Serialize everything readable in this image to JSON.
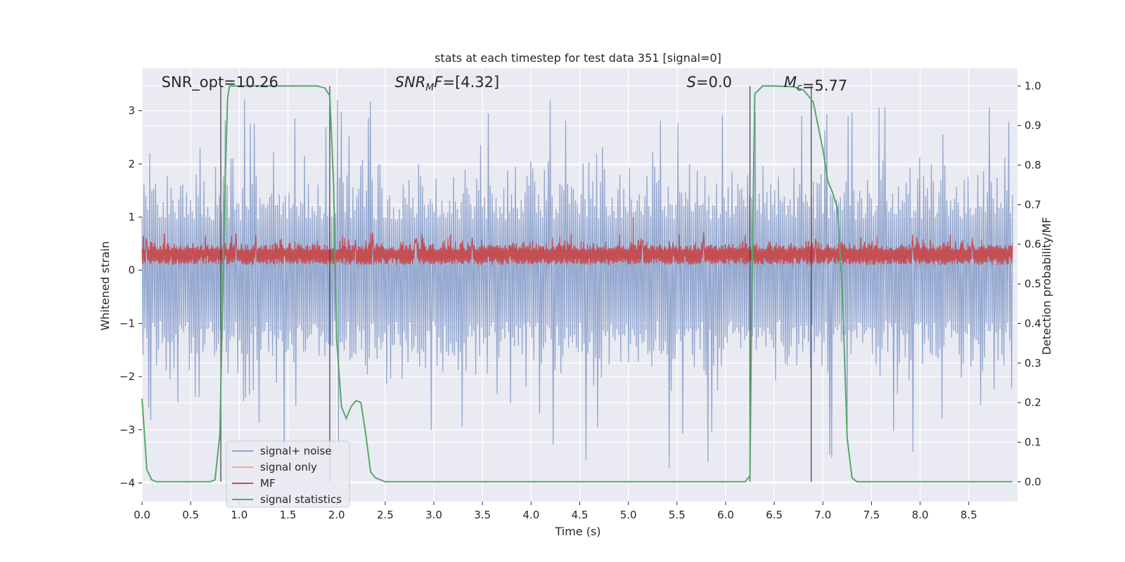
{
  "chart_data": {
    "type": "line",
    "title": "stats at each timestep for test data 351 [signal=0]",
    "xlabel": "Time (s)",
    "ylabel": "Whitened strain",
    "y2label": "Detection probability/MF",
    "xlim": [
      0,
      9.0
    ],
    "ylim": [
      -4.35,
      3.8
    ],
    "y2lim": [
      -0.05,
      1.045
    ],
    "xticks": [
      0.0,
      0.5,
      1.0,
      1.5,
      2.0,
      2.5,
      3.0,
      3.5,
      4.0,
      4.5,
      5.0,
      5.5,
      6.0,
      6.5,
      7.0,
      7.5,
      8.0,
      8.5
    ],
    "xtick_labels": [
      "0.0",
      "0.5",
      "1.0",
      "1.5",
      "2.0",
      "2.5",
      "3.0",
      "3.5",
      "4.0",
      "4.5",
      "5.0",
      "5.5",
      "6.0",
      "6.5",
      "7.0",
      "7.5",
      "8.0",
      "8.5"
    ],
    "yticks": [
      3,
      2,
      1,
      0,
      -1,
      -2,
      -3,
      -4
    ],
    "ytick_labels": [
      "3",
      "2",
      "1",
      "0",
      "−1",
      "−2",
      "−3",
      "−4"
    ],
    "y2ticks": [
      1.0,
      0.9,
      0.8,
      0.7,
      0.6,
      0.5,
      0.4,
      0.3,
      0.2,
      0.1,
      0.0
    ],
    "y2tick_labels": [
      "1.0",
      "0.9",
      "0.8",
      "0.7",
      "0.6",
      "0.5",
      "0.4",
      "0.3",
      "0.2",
      "0.1",
      "0.0"
    ],
    "grid": true,
    "legend_position": "lower-left",
    "legend": [
      {
        "label": "signal+ noise",
        "color": "#8ea3cc"
      },
      {
        "label": "signal only",
        "color": "#eea98a"
      },
      {
        "label": "MF",
        "color": "#c44e52"
      },
      {
        "label": "signal statistics",
        "color": "#55a868"
      }
    ],
    "annotations": [
      {
        "base": "SNR_opt",
        "sub": "",
        "value": "=10.26",
        "italic": false,
        "x": 0.2
      },
      {
        "base": "SNR",
        "sub": "M",
        "tail": "F",
        "value": "=[4.32]",
        "italic": true,
        "x": 2.6
      },
      {
        "base": "S",
        "sub": "",
        "value": "=0.0",
        "italic": true,
        "x": 5.6
      },
      {
        "base": "M",
        "sub": "c",
        "value": "=5.77",
        "italic": true,
        "x": 6.6
      }
    ],
    "vlines": [
      0.81,
      1.93,
      6.25,
      6.88
    ],
    "noise_envelope": {
      "upper_typical": 1.7,
      "lower_typical": -1.7,
      "peaks": [
        3.35,
        2.9,
        3.05,
        3.1,
        3.0,
        3.05,
        2.85,
        3.3,
        3.3,
        3.2,
        3.4,
        3.3,
        3.3
      ],
      "troughs": [
        -4.0,
        -3.8,
        -3.5,
        -3.65,
        -3.55,
        -3.35,
        -3.1,
        -3.0
      ]
    },
    "mf_band": {
      "low": 0.0,
      "high": 0.62,
      "max_spike": 1.0,
      "max_spike_x": 5.05
    },
    "series": [
      {
        "name": "signal statistics",
        "axis": "y2",
        "x": [
          0.0,
          0.05,
          0.1,
          0.15,
          0.2,
          0.3,
          0.5,
          0.7,
          0.75,
          0.8,
          0.85,
          0.88,
          0.9,
          1.0,
          1.5,
          1.8,
          1.88,
          1.93,
          1.97,
          2.0,
          2.05,
          2.1,
          2.15,
          2.2,
          2.25,
          2.3,
          2.35,
          2.4,
          2.5,
          3.0,
          4.0,
          5.0,
          6.0,
          6.2,
          6.25,
          6.27,
          6.3,
          6.38,
          6.5,
          6.7,
          6.8,
          6.85,
          6.9,
          6.95,
          7.0,
          7.05,
          7.1,
          7.15,
          7.2,
          7.25,
          7.3,
          7.35,
          7.4,
          7.5,
          8.0,
          8.5,
          8.95
        ],
        "y": [
          0.21,
          0.03,
          0.005,
          0.0,
          0.0,
          0.0,
          0.0,
          0.0,
          0.005,
          0.12,
          0.72,
          0.97,
          1.0,
          1.0,
          1.0,
          1.0,
          0.995,
          0.975,
          0.75,
          0.36,
          0.19,
          0.16,
          0.19,
          0.205,
          0.2,
          0.12,
          0.025,
          0.01,
          0.0,
          0.0,
          0.0,
          0.0,
          0.0,
          0.0,
          0.015,
          0.48,
          0.98,
          1.0,
          1.0,
          0.998,
          0.99,
          0.975,
          0.96,
          0.9,
          0.84,
          0.76,
          0.73,
          0.69,
          0.48,
          0.11,
          0.01,
          0.0,
          0.0,
          0.0,
          0.0,
          0.0,
          0.0
        ]
      }
    ]
  }
}
